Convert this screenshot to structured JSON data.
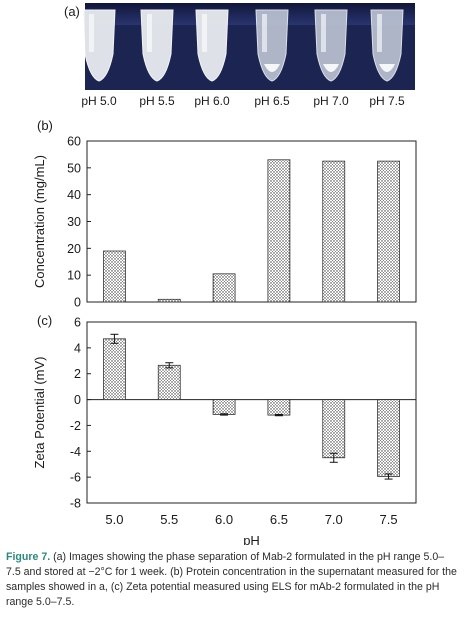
{
  "panel_a": {
    "label": "(a)",
    "tube_labels": [
      "pH 5.0",
      "pH 5.5",
      "pH 6.0",
      "pH 6.5",
      "pH 7.0",
      "pH 7.5"
    ]
  },
  "chart_data": [
    {
      "type": "bar",
      "panel": "(b)",
      "title": "",
      "xlabel": "",
      "ylabel": "Concentration (mg/mL)",
      "categories": [
        "5.0",
        "5.5",
        "6.0",
        "6.5",
        "7.0",
        "7.5"
      ],
      "values": [
        19,
        1,
        10.5,
        53,
        52.5,
        52.5
      ],
      "ylim": [
        0,
        60
      ],
      "yticks": [
        0,
        10,
        20,
        30,
        40,
        50,
        60
      ]
    },
    {
      "type": "bar",
      "panel": "(c)",
      "title": "",
      "xlabel": "pH",
      "ylabel": "Zeta Potential (mV)",
      "categories": [
        "5.0",
        "5.5",
        "6.0",
        "6.5",
        "7.0",
        "7.5"
      ],
      "values": [
        4.7,
        2.65,
        -1.15,
        -1.2,
        -4.5,
        -5.95
      ],
      "errors": [
        0.35,
        0.2,
        0.05,
        0.05,
        0.35,
        0.2
      ],
      "ylim": [
        -8,
        6
      ],
      "yticks": [
        -8,
        -6,
        -4,
        -2,
        0,
        2,
        4,
        6
      ]
    }
  ],
  "caption": {
    "figure_number": "Figure 7.",
    "text": " (a) Images showing the phase separation of Mab-2 formulated in the pH range 5.0–7.5 and stored at −2°C for 1 week. (b) Protein concentration in the supernatant measured for the samples showed in a, (c) Zeta potential measured using ELS for mAb-2 formulated in the pH range 5.0–7.5."
  }
}
